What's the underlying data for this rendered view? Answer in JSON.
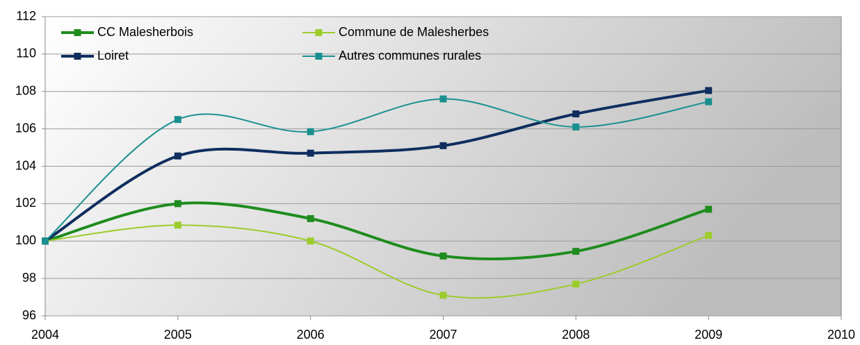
{
  "chart_data": {
    "type": "line",
    "x": [
      2004,
      2005,
      2006,
      2007,
      2008,
      2009
    ],
    "series": [
      {
        "name": "CC Malesherbois",
        "color": "#1e8c1e",
        "values": [
          100,
          102.0,
          101.2,
          99.2,
          99.45,
          101.7
        ],
        "width": 4
      },
      {
        "name": "Commune de Malesherbes",
        "color": "#9ccc2c",
        "values": [
          100,
          100.85,
          100.0,
          97.1,
          97.7,
          100.3
        ],
        "width": 2
      },
      {
        "name": "Loiret",
        "color": "#0f2e5f",
        "values": [
          100,
          104.55,
          104.7,
          105.1,
          106.8,
          108.05
        ],
        "width": 4
      },
      {
        "name": "Autres communes rurales",
        "color": "#1a8f8f",
        "values": [
          100,
          106.5,
          105.85,
          107.6,
          106.1,
          107.45
        ],
        "width": 2
      }
    ],
    "xlim": [
      2004,
      2010
    ],
    "xticks": [
      2004,
      2005,
      2006,
      2007,
      2008,
      2009,
      2010
    ],
    "ylim": [
      96,
      112
    ],
    "yticks": [
      96,
      98,
      100,
      102,
      104,
      106,
      108,
      110,
      112
    ],
    "grid": true,
    "smooth": true,
    "legend": "top-left"
  }
}
